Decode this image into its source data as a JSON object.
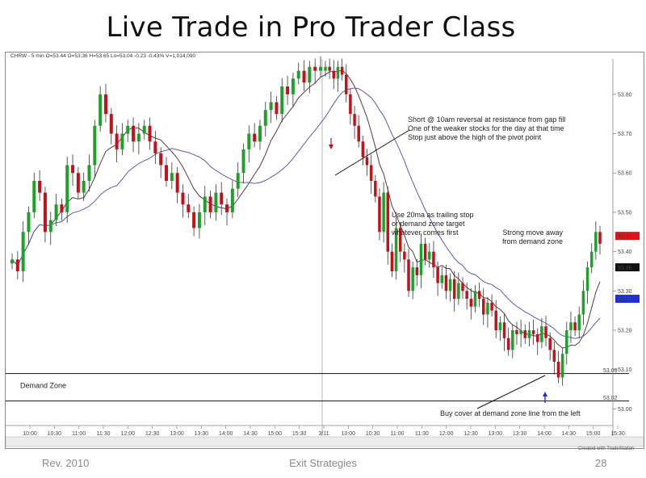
{
  "slide": {
    "title": "Live Trade in Pro Trader Class",
    "footer_left": "Rev. 2010",
    "footer_center": "Exit Strategies",
    "page_number": "28",
    "credit": "Created with TradeStation"
  },
  "chart_data": {
    "type": "candlestick",
    "header": "CHRW - 5 min  O=53.44  O=53.36  H=53.65  Lo=53.04  -0.23  -0.43%  V=1,014,090",
    "ylim": [
      52.97,
      53.89
    ],
    "y_ticks": [
      53.8,
      53.7,
      53.6,
      53.5,
      53.4,
      53.3,
      53.2,
      53.1,
      53.0
    ],
    "y_tick_labels": [
      "53.80",
      "53.70",
      "53.60",
      "53.50",
      "53.40",
      "53.30",
      "53.20",
      "53.10",
      "53.00"
    ],
    "x_tick_labels": [
      "10:00",
      "10:30",
      "11:00",
      "11:30",
      "12:00",
      "12:30",
      "13:00",
      "13:30",
      "14:00",
      "14:30",
      "15:00",
      "15:30",
      "3/11",
      "10:00",
      "10:30",
      "11:00",
      "11:30",
      "12:00",
      "12:30",
      "13:00",
      "13:30",
      "14:00",
      "14:30",
      "15:00",
      "15:30"
    ],
    "price_tags": [
      {
        "label": "53.44",
        "value": 53.44,
        "color": "#e0141a"
      },
      {
        "label": "53.36",
        "value": 53.36,
        "color": "#111111"
      },
      {
        "label": "53.28",
        "value": 53.28,
        "color": "#1d2fd6"
      }
    ],
    "levels": [
      {
        "name": "Demand Zone",
        "label": "Demand Zone",
        "values": [
          53.09,
          53.02
        ],
        "value_labels": [
          "53.09",
          "53.02"
        ]
      }
    ],
    "day1": {
      "closes": [
        53.38,
        53.35,
        53.45,
        53.5,
        53.58,
        53.55,
        53.45,
        53.48,
        53.52,
        53.5,
        53.62,
        53.6,
        53.55,
        53.58,
        53.62,
        53.72,
        53.8,
        53.75,
        53.7,
        53.66,
        53.7,
        53.72,
        53.68,
        53.7,
        53.72,
        53.68,
        53.65,
        53.62,
        53.58,
        53.6,
        53.55,
        53.52,
        53.5,
        53.46,
        53.5,
        53.54,
        53.5,
        53.55,
        53.52,
        53.5,
        53.56,
        53.6,
        53.66,
        53.7,
        53.68,
        53.72,
        53.76,
        53.78,
        53.75,
        53.82,
        53.8,
        53.84,
        53.86,
        53.83,
        53.87,
        53.86,
        53.87
      ]
    },
    "day2": {
      "closes": [
        53.87,
        53.86,
        53.84,
        53.87,
        53.85,
        53.8,
        53.75,
        53.72,
        53.68,
        53.64,
        53.62,
        53.58,
        53.54,
        53.45,
        53.55,
        53.4,
        53.35,
        53.46,
        53.4,
        53.38,
        53.3,
        53.36,
        53.34,
        53.42,
        53.38,
        53.4,
        53.36,
        53.32,
        53.34,
        53.3,
        53.33,
        53.28,
        53.32,
        53.3,
        53.28,
        53.26,
        53.3,
        53.28,
        53.24,
        53.27,
        53.25,
        53.2,
        53.22,
        53.18,
        53.15,
        53.2,
        53.19,
        53.2,
        53.18,
        53.2,
        53.19,
        53.17,
        53.21,
        53.18,
        53.15,
        53.12,
        53.08,
        53.14,
        53.2,
        53.22,
        53.2,
        53.24,
        53.3,
        53.36,
        53.4,
        53.45,
        53.42
      ]
    },
    "annotations": [
      {
        "lines": [
          "Short @ 10am reversal at resistance from gap fill",
          "One of the weaker stocks for the day at that time",
          "Stop just above the high of the pivot point"
        ]
      },
      {
        "lines": [
          "Use 20ma as trailing stop",
          "or demand zone target",
          "whatever comes first"
        ]
      },
      {
        "lines": [
          "Strong move away",
          "from demand zone"
        ]
      },
      {
        "lines": [
          "Buy cover at demand zone line from the left"
        ]
      }
    ],
    "colors": {
      "up": "#1fa02a",
      "down": "#c4101a",
      "ma_short": "#5a3a3a",
      "ma_long": "#5c5ca8"
    }
  }
}
